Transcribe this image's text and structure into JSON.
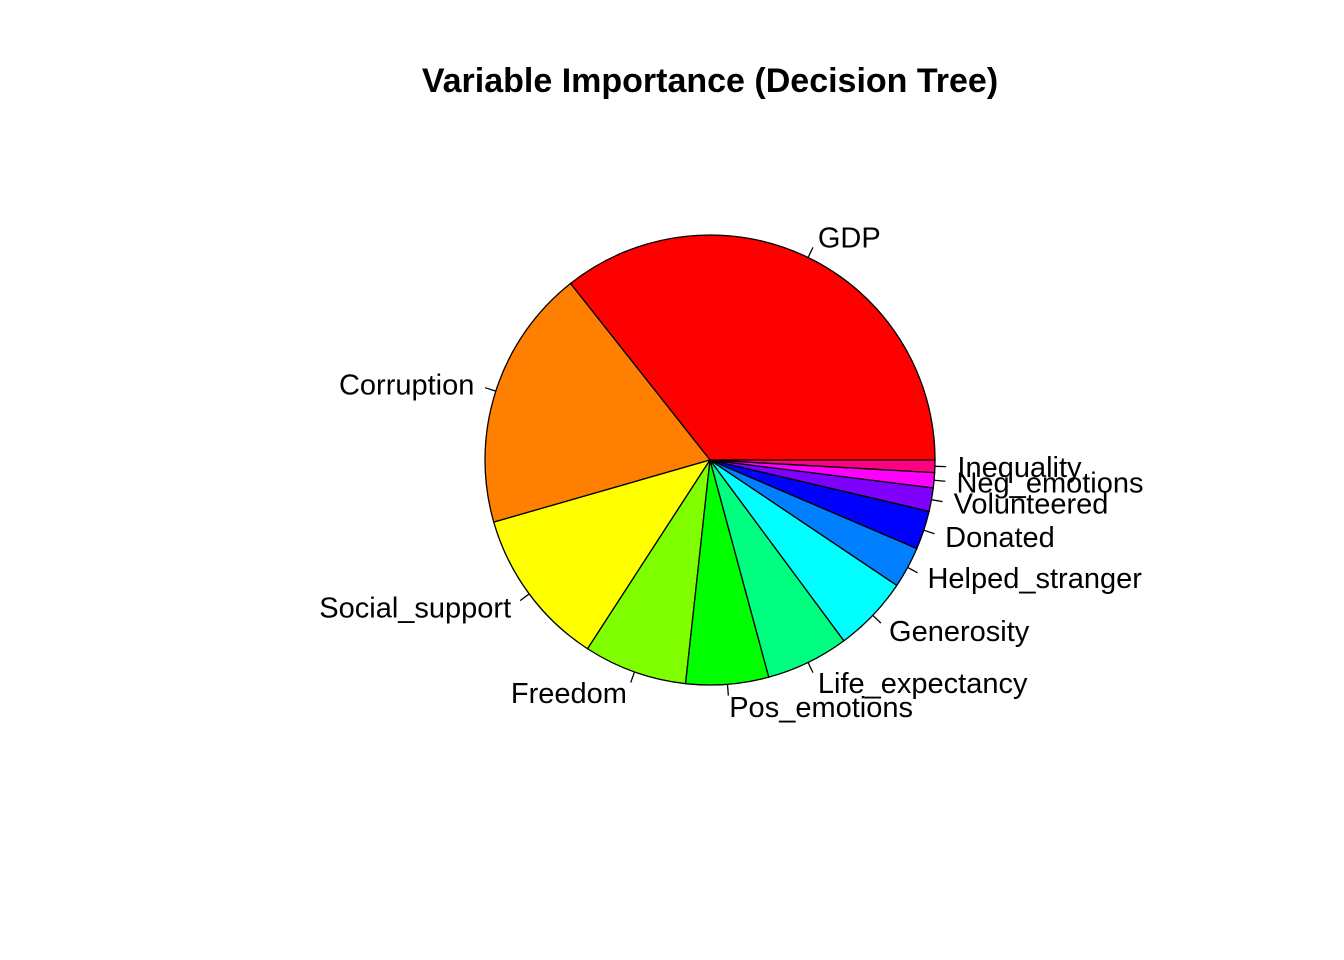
{
  "chart_data": {
    "type": "pie",
    "title": "Variable Importance (Decision Tree)",
    "slices": [
      {
        "label": "GDP",
        "value": 36.0,
        "color": "#FF0000"
      },
      {
        "label": "Corruption",
        "value": 19.0,
        "color": "#FF8000"
      },
      {
        "label": "Social_support",
        "value": 11.5,
        "color": "#FFFF00"
      },
      {
        "label": "Freedom",
        "value": 7.5,
        "color": "#80FF00"
      },
      {
        "label": "Pos_emotions",
        "value": 6.0,
        "color": "#00FF00"
      },
      {
        "label": "Life_expectancy",
        "value": 6.0,
        "color": "#00FF80"
      },
      {
        "label": "Generosity",
        "value": 5.5,
        "color": "#00FFFF"
      },
      {
        "label": "Helped_stranger",
        "value": 3.0,
        "color": "#0080FF"
      },
      {
        "label": "Donated",
        "value": 2.8,
        "color": "#0000FF"
      },
      {
        "label": "Volunteered",
        "value": 1.7,
        "color": "#8000FF"
      },
      {
        "label": "Neg_emotions",
        "value": 1.1,
        "color": "#FF00FF"
      },
      {
        "label": "Inequality",
        "value": 0.9,
        "color": "#FF0080"
      }
    ]
  }
}
